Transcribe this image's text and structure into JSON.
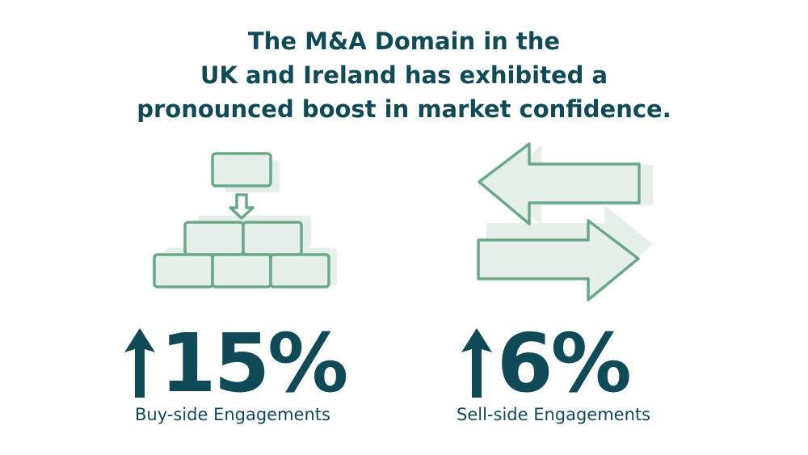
{
  "headline": {
    "line1": "The M&A Domain in the",
    "line2": "UK and Ireland has exhibited a",
    "line3": "pronounced boost in market confidence."
  },
  "stats": [
    {
      "icon": "building-blocks-icon",
      "trend_icon": "arrow-up-icon",
      "value": "15%",
      "caption": "Buy-side Engagements"
    },
    {
      "icon": "exchange-arrows-icon",
      "trend_icon": "arrow-up-icon",
      "value": "6%",
      "caption": "Sell-side Engagements"
    }
  ],
  "colors": {
    "text": "#0f4a56",
    "icon_stroke": "#6aa88a",
    "icon_fill": "#e6efe9"
  }
}
